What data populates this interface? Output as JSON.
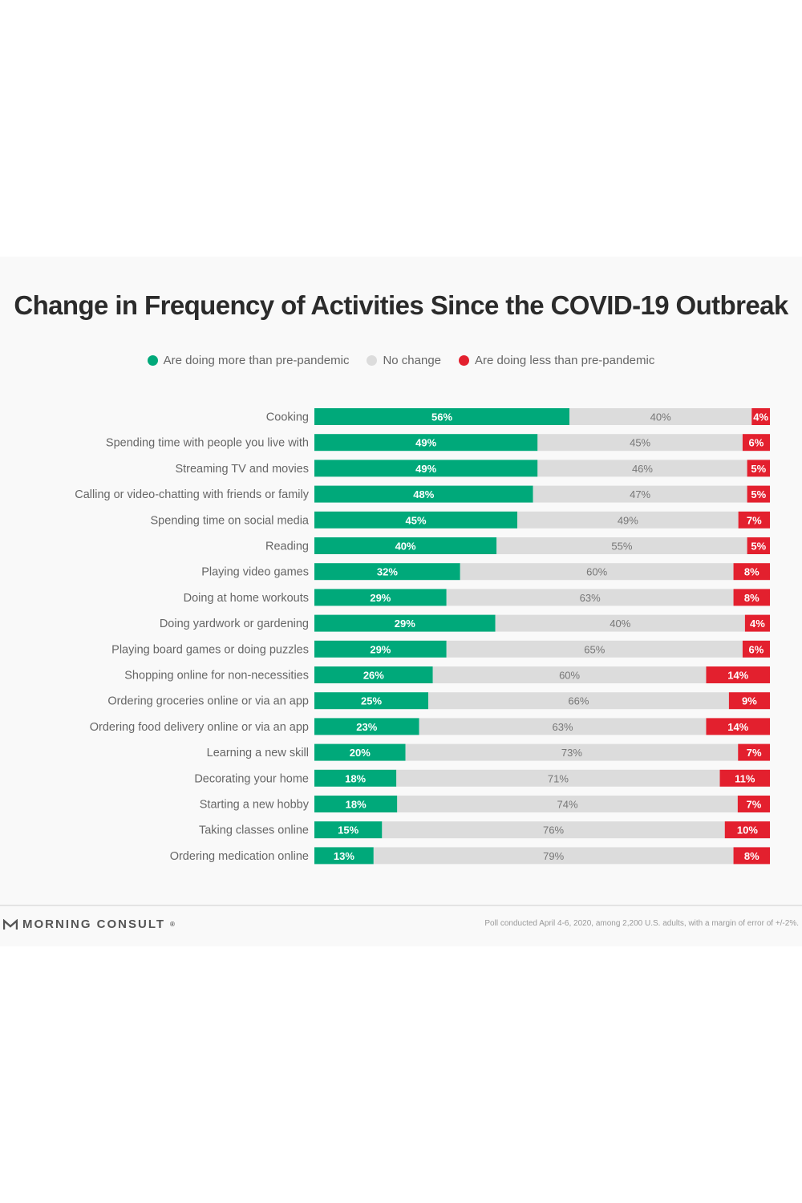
{
  "colors": {
    "more": "#00a97a",
    "no_change": "#dcdcdc",
    "less": "#e3202e"
  },
  "brand": {
    "logo_icon": "morning-consult-logo-icon",
    "name": "MORNING CONSULT",
    "mark": "®"
  },
  "footnote": "Poll conducted April 4-6, 2020, among 2,200 U.S. adults, with a margin of error of +/-2%.",
  "chart_data": {
    "type": "bar",
    "orientation": "horizontal",
    "stacked": true,
    "title": "Change in Frequency of Activities Since the COVID-19 Outbreak",
    "legend": [
      "Are doing more than pre-pandemic",
      "No change",
      "Are doing less than pre-pandemic"
    ],
    "legend_position": "top",
    "value_suffix": "%",
    "grid": false,
    "categories": [
      "Cooking",
      "Spending time with people you live with",
      "Streaming TV and movies",
      "Calling or video-chatting with friends or family",
      "Spending time on social media",
      "Reading",
      "Playing video games",
      "Doing at home workouts",
      "Doing yardwork or gardening",
      "Playing board games or doing puzzles",
      "Shopping online for non-necessities",
      "Ordering groceries online or via an app",
      "Ordering food delivery online or via an app",
      "Learning a new skill",
      "Decorating your home",
      "Starting a new hobby",
      "Taking classes online",
      "Ordering medication online"
    ],
    "series": [
      {
        "name": "Are doing more than pre-pandemic",
        "values": [
          56,
          49,
          49,
          48,
          45,
          40,
          32,
          29,
          29,
          29,
          26,
          25,
          23,
          20,
          18,
          18,
          15,
          13
        ]
      },
      {
        "name": "No change",
        "values": [
          40,
          45,
          46,
          47,
          49,
          55,
          60,
          63,
          40,
          65,
          60,
          66,
          63,
          73,
          71,
          74,
          76,
          79
        ]
      },
      {
        "name": "Are doing less than pre-pandemic",
        "values": [
          4,
          6,
          5,
          5,
          7,
          5,
          8,
          8,
          4,
          6,
          14,
          9,
          14,
          7,
          11,
          7,
          10,
          8
        ]
      }
    ]
  }
}
